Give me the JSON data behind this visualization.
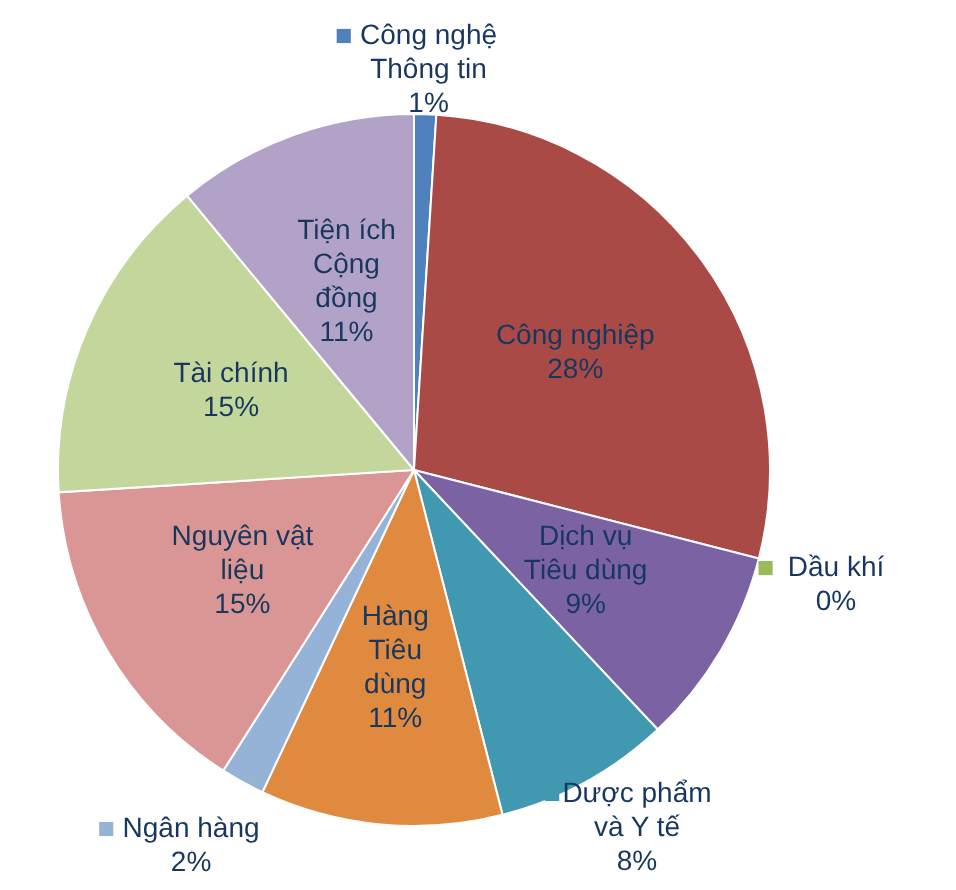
{
  "chart_data": {
    "type": "pie",
    "legend": "right",
    "categories": [
      "Công nghệ\nThông tin",
      "Công nghiệp",
      "Dầu khí",
      "Dịch vụ\nTiêu dùng",
      "Dược phẩm\nvà Y tế",
      "Hàng\nTiêu\ndùng",
      "Ngân hàng",
      "Nguyên vật\nliệu",
      "Tài chính",
      "Tiện ích\nCộng\nđồng"
    ],
    "values": [
      1,
      28,
      0,
      9,
      8,
      11,
      2,
      15,
      15,
      11
    ],
    "value_labels": [
      "1%",
      "28%",
      "0%",
      "9%",
      "8%",
      "11%",
      "2%",
      "15%",
      "15%",
      "11%"
    ],
    "colors": [
      "#4f81bd",
      "#a94a47",
      "#9bbb59",
      "#7b62a2",
      "#4099b0",
      "#e08a3f",
      "#95b3d7",
      "#d99694",
      "#c3d69b",
      "#b2a2c7"
    ]
  }
}
